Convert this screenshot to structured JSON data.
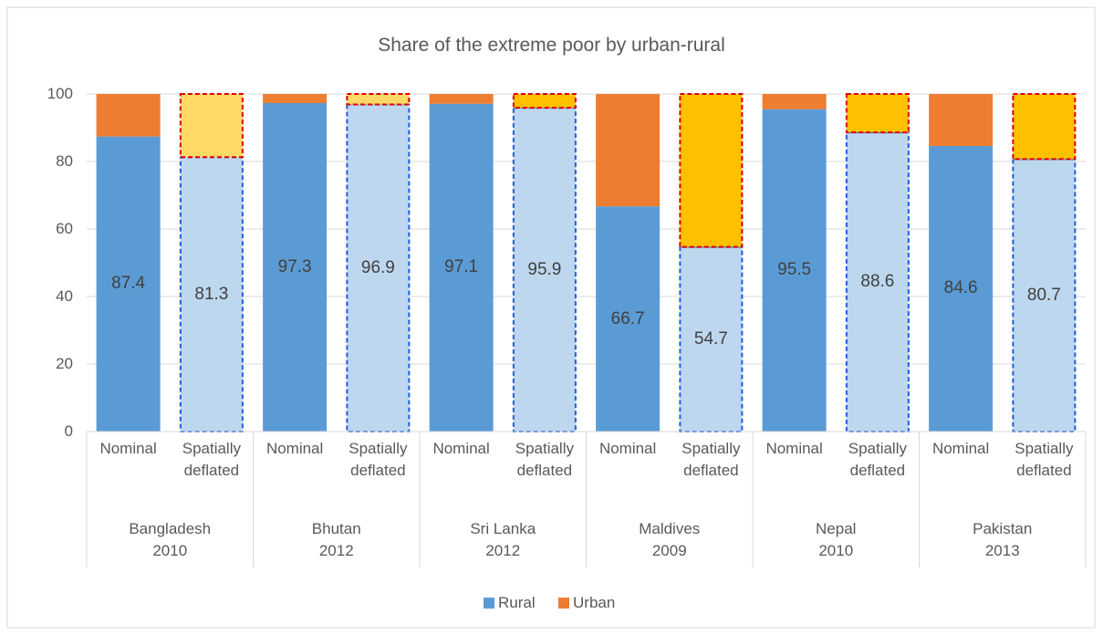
{
  "chart_data": {
    "type": "stacked_bar",
    "title": "Share of the extreme poor by urban-rural",
    "categories": [
      "Nominal",
      "Spatially\ndeflated",
      "Nominal",
      "Spatially\ndeflated",
      "Nominal",
      "Spatially\ndeflated",
      "Nominal",
      "Spatially\ndeflated",
      "Nominal",
      "Spatially\ndeflated",
      "Nominal",
      "Spatially\ndeflated"
    ],
    "groups": [
      "Bangladesh\n2010",
      "Bhutan\n2012",
      "Sri Lanka\n2012",
      "Maldives\n2009",
      "Nepal\n2010",
      "Pakistan\n2013"
    ],
    "series": [
      {
        "name": "Rural",
        "color": "#5b9bd5",
        "values": [
          87.4,
          81.3,
          97.3,
          96.9,
          97.1,
          95.9,
          66.7,
          54.7,
          95.5,
          88.6,
          84.6,
          80.7
        ],
        "colors": [
          "#5b9bd5",
          "#bdd7ee",
          "#5b9bd5",
          "#bdd7ee",
          "#5b9bd5",
          "#bdd7ee",
          "#5b9bd5",
          "#bdd7ee",
          "#5b9bd5",
          "#bdd7ee",
          "#5b9bd5",
          "#bdd7ee"
        ],
        "edge_colors": [
          null,
          "#1f5fe0",
          null,
          "#1f5fe0",
          null,
          "#1f5fe0",
          null,
          "#1f5fe0",
          null,
          "#1f5fe0",
          null,
          "#1f5fe0"
        ],
        "data_labels": true
      },
      {
        "name": "Urban",
        "color": "#ed7d31",
        "values": [
          12.6,
          18.7,
          2.7,
          3.1,
          2.9,
          4.1,
          33.3,
          45.3,
          4.5,
          11.4,
          15.4,
          19.3
        ],
        "colors": [
          "#ed7d31",
          "#ffd966",
          "#ed7d31",
          "#ffd966",
          "#ed7d31",
          "#ffc000",
          "#ed7d31",
          "#ffc000",
          "#ed7d31",
          "#ffc000",
          "#ed7d31",
          "#ffc000"
        ],
        "edge_colors": [
          null,
          "#e00000",
          null,
          "#e00000",
          null,
          "#e00000",
          null,
          "#e00000",
          null,
          "#e00000",
          null,
          "#e00000"
        ],
        "data_labels": false
      }
    ],
    "ylim": [
      0,
      100
    ],
    "yticks": [
      0,
      20,
      40,
      60,
      80,
      100
    ],
    "grid": true,
    "legend": "bottom"
  }
}
